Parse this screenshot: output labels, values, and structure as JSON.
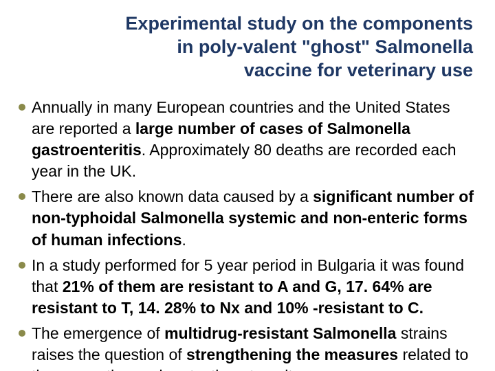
{
  "title": {
    "text": "Experimental study on the components in poly-valent \"ghost\" Salmonella vaccine for veterinary use",
    "color": "#1f3864",
    "fontsize": 27
  },
  "body": {
    "text_color": "#000000",
    "fontsize": 23,
    "bullet_color": "#8a8a4a",
    "items": [
      {
        "runs": [
          {
            "t": "Annually in many European countries and the United States are reported a ",
            "b": false
          },
          {
            "t": "large number of cases of Salmonella gastroenteritis",
            "b": true
          },
          {
            "t": ". Approximately 80 deaths are recorded each year in the UK.",
            "b": false
          }
        ]
      },
      {
        "runs": [
          {
            "t": "There are also known data caused by a ",
            "b": false
          },
          {
            "t": "significant number of non-typhoidal Salmonella systemic and non-enteric forms of human infections",
            "b": true
          },
          {
            "t": ".",
            "b": false
          }
        ]
      },
      {
        "runs": [
          {
            "t": "In a study performed for 5 year period in Bulgaria it was found that ",
            "b": false
          },
          {
            "t": "21% of them are resistant to A and G, 17. 64% are resistant to T, 14. 28% to Nx and 10% -resistant to C.",
            "b": true
          }
        ]
      },
      {
        "runs": [
          {
            "t": "The emergence of ",
            "b": false
          },
          {
            "t": "multidrug-resistant Salmonella",
            "b": true
          },
          {
            "t": " strains raises the question of ",
            "b": false
          },
          {
            "t": "strengthening the measures",
            "b": true
          },
          {
            "t": " related to the prevention and protection at poultry.",
            "b": false
          }
        ]
      }
    ]
  }
}
